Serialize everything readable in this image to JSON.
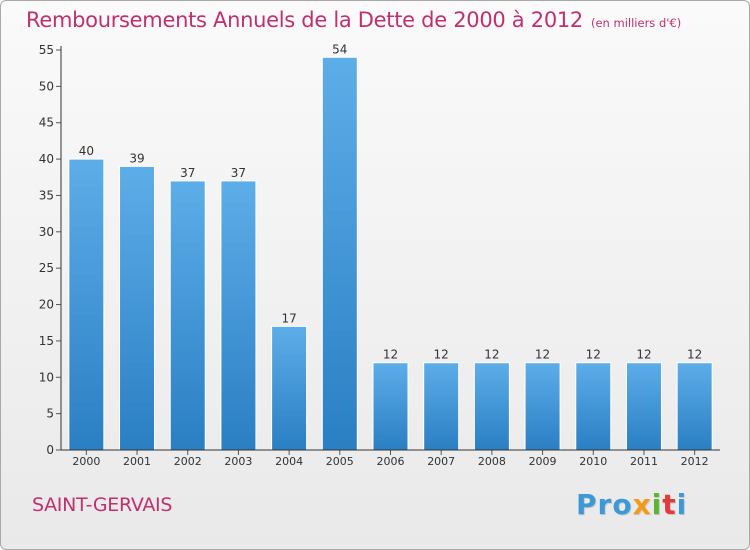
{
  "header": {
    "title": "Remboursements Annuels de la Dette de 2000 à 2012",
    "unit": "(en milliers d'€)"
  },
  "footer": {
    "commune": "SAINT-GERVAIS",
    "logo_text": "Proxiti",
    "logo_parts": [
      "Pro",
      "x",
      "i",
      "t",
      "i"
    ]
  },
  "colors": {
    "title": "#c0306e",
    "bar_top": "#5dade8",
    "bar_bottom": "#2a7fc3",
    "axis": "#333333"
  },
  "chart_data": {
    "type": "bar",
    "title": "Remboursements Annuels de la Dette de 2000 à 2012",
    "subtitle": "(en milliers d'€)",
    "xlabel": "",
    "ylabel": "",
    "categories": [
      "2000",
      "2001",
      "2002",
      "2003",
      "2004",
      "2005",
      "2006",
      "2007",
      "2008",
      "2009",
      "2010",
      "2011",
      "2012"
    ],
    "values": [
      40,
      39,
      37,
      37,
      17,
      54,
      12,
      12,
      12,
      12,
      12,
      12,
      12
    ],
    "ylim": [
      0,
      55
    ],
    "yticks": [
      0,
      5,
      10,
      15,
      20,
      25,
      30,
      35,
      40,
      45,
      50,
      55
    ],
    "grid": false,
    "legend": "none"
  }
}
